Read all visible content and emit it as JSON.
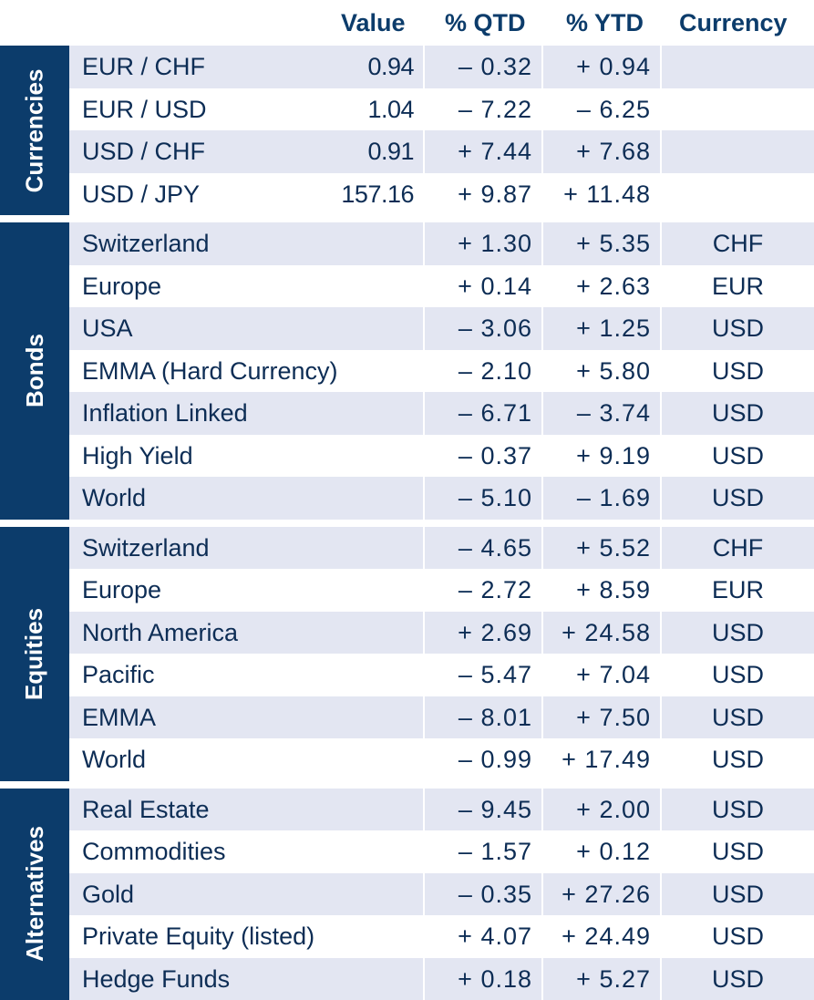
{
  "headers": {
    "value": "Value",
    "qtd": "% QTD",
    "ytd": "% YTD",
    "currency": "Currency"
  },
  "groups": [
    {
      "label": "Currencies",
      "rows": [
        {
          "name": "EUR / CHF",
          "value": "0.94",
          "qtd": "– 0.32",
          "ytd": "+ 0.94",
          "currency": ""
        },
        {
          "name": "EUR / USD",
          "value": "1.04",
          "qtd": "– 7.22",
          "ytd": "– 6.25",
          "currency": ""
        },
        {
          "name": "USD / CHF",
          "value": "0.91",
          "qtd": "+ 7.44",
          "ytd": "+ 7.68",
          "currency": ""
        },
        {
          "name": "USD / JPY",
          "value": "157.16",
          "qtd": "+ 9.87",
          "ytd": "+ 11.48",
          "currency": ""
        }
      ]
    },
    {
      "label": "Bonds",
      "rows": [
        {
          "name": "Switzerland",
          "value": "",
          "qtd": "+ 1.30",
          "ytd": "+ 5.35",
          "currency": "CHF"
        },
        {
          "name": "Europe",
          "value": "",
          "qtd": "+ 0.14",
          "ytd": "+ 2.63",
          "currency": "EUR"
        },
        {
          "name": "USA",
          "value": "",
          "qtd": "– 3.06",
          "ytd": "+ 1.25",
          "currency": "USD"
        },
        {
          "name": "EMMA (Hard Currency)",
          "value": "",
          "qtd": "– 2.10",
          "ytd": "+ 5.80",
          "currency": "USD"
        },
        {
          "name": "Inflation Linked",
          "value": "",
          "qtd": "– 6.71",
          "ytd": "– 3.74",
          "currency": "USD"
        },
        {
          "name": "High Yield",
          "value": "",
          "qtd": "– 0.37",
          "ytd": "+ 9.19",
          "currency": "USD"
        },
        {
          "name": "World",
          "value": "",
          "qtd": "– 5.10",
          "ytd": "– 1.69",
          "currency": "USD"
        }
      ]
    },
    {
      "label": "Equities",
      "rows": [
        {
          "name": "Switzerland",
          "value": "",
          "qtd": "– 4.65",
          "ytd": "+ 5.52",
          "currency": "CHF"
        },
        {
          "name": "Europe",
          "value": "",
          "qtd": "– 2.72",
          "ytd": "+ 8.59",
          "currency": "EUR"
        },
        {
          "name": "North America",
          "value": "",
          "qtd": "+ 2.69",
          "ytd": "+ 24.58",
          "currency": "USD"
        },
        {
          "name": "Pacific",
          "value": "",
          "qtd": "– 5.47",
          "ytd": "+ 7.04",
          "currency": "USD"
        },
        {
          "name": "EMMA",
          "value": "",
          "qtd": "– 8.01",
          "ytd": "+ 7.50",
          "currency": "USD"
        },
        {
          "name": "World",
          "value": "",
          "qtd": "– 0.99",
          "ytd": "+ 17.49",
          "currency": "USD"
        }
      ]
    },
    {
      "label": "Alternatives",
      "rows": [
        {
          "name": "Real Estate",
          "value": "",
          "qtd": "– 9.45",
          "ytd": "+ 2.00",
          "currency": "USD"
        },
        {
          "name": "Commodities",
          "value": "",
          "qtd": "– 1.57",
          "ytd": "+ 0.12",
          "currency": "USD"
        },
        {
          "name": "Gold",
          "value": "",
          "qtd": "– 0.35",
          "ytd": "+ 27.26",
          "currency": "USD"
        },
        {
          "name": "Private Equity (listed)",
          "value": "",
          "qtd": "+ 4.07",
          "ytd": "+ 24.49",
          "currency": "USD"
        },
        {
          "name": "Hedge Funds",
          "value": "",
          "qtd": "+ 0.18",
          "ytd": "+ 5.27",
          "currency": "USD"
        }
      ]
    }
  ]
}
